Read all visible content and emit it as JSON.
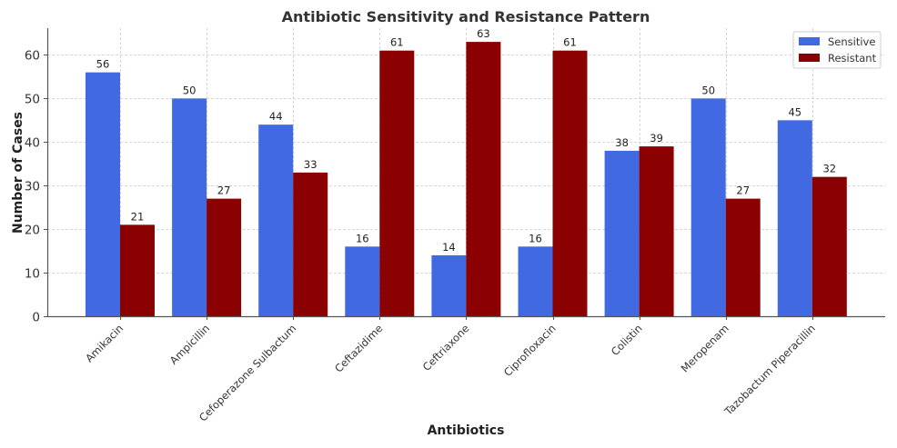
{
  "chart_data": {
    "type": "bar",
    "title": "Antibiotic Sensitivity and Resistance Pattern",
    "xlabel": "Antibiotics",
    "ylabel": "Number of Cases",
    "categories": [
      "Amikacin",
      "Ampicillin",
      "Cefoperazone Sulbactum",
      "Ceftazidime",
      "Ceftriaxone",
      "Ciprofloxacin",
      "Colistin",
      "Meropenam",
      "Tazobactum Piperacillin"
    ],
    "series": [
      {
        "name": "Sensitive",
        "color": "#4169e1",
        "values": [
          56,
          50,
          44,
          16,
          14,
          16,
          38,
          50,
          45
        ]
      },
      {
        "name": "Resistant",
        "color": "#8b0000",
        "values": [
          21,
          27,
          33,
          61,
          63,
          61,
          39,
          27,
          32
        ]
      }
    ],
    "ylim": [
      0,
      66.15
    ],
    "yticks": [
      0,
      10,
      20,
      30,
      40,
      50,
      60
    ],
    "grid": true,
    "legend_position": "top-right",
    "data_labels": true
  }
}
